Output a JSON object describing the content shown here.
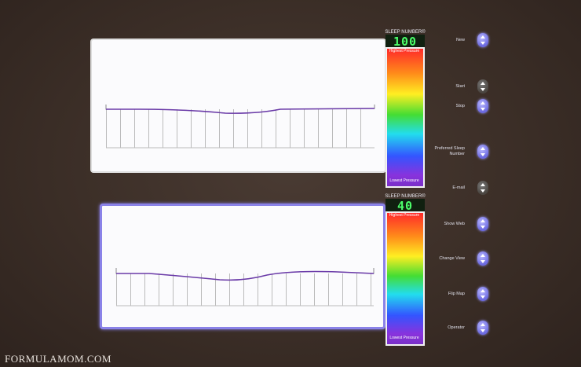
{
  "sides": [
    {
      "label": "SLEEP NUMBER®",
      "number": 100,
      "top_label": "Highest Pressure",
      "bottom_label": "Lowest Pressure"
    },
    {
      "label": "SLEEP NUMBER®",
      "number": 40,
      "top_label": "Highest Pressure",
      "bottom_label": "Lowest Pressure"
    }
  ],
  "buttons": [
    "New",
    "Start",
    "Stop",
    "Preferred Sleep Number",
    "E-mail",
    "Show Web",
    "Change View",
    "Flip Map",
    "Operator"
  ],
  "watermark": "FORMULAMOM.COM"
}
